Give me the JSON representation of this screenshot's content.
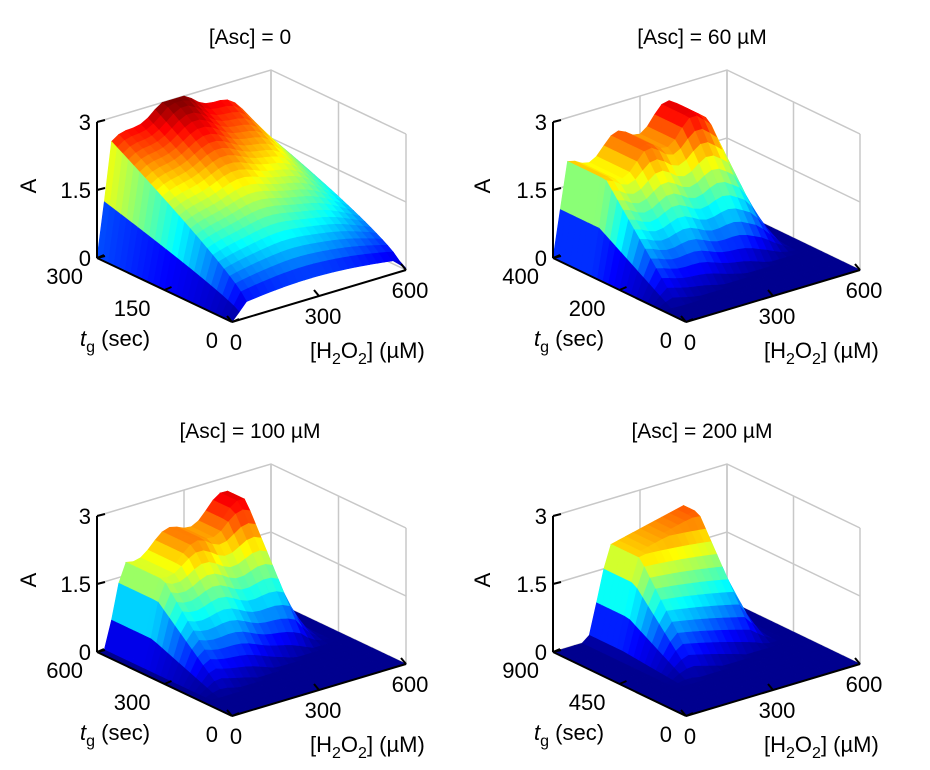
{
  "chart_data": [
    {
      "type": "surface",
      "title": "[Asc] = 0",
      "zlabel": "A",
      "xlabel": "[H2O2] (µM)",
      "ylabel": "tg (sec)",
      "xlim": [
        0,
        600
      ],
      "ylim": [
        0,
        300
      ],
      "zlim": [
        0,
        3
      ],
      "xticks": [
        "0",
        "300",
        "600"
      ],
      "yticks": [
        "0",
        "150",
        "300"
      ],
      "zticks": [
        "0",
        "1.5",
        "3"
      ],
      "x": [
        0,
        60,
        120,
        180,
        240,
        300,
        360,
        420,
        480,
        540,
        600
      ],
      "y": [
        0,
        30,
        60,
        90,
        120,
        150,
        180,
        210,
        240,
        270,
        300
      ],
      "peak_A": 3.0
    },
    {
      "type": "surface",
      "title": "[Asc] = 60 µM",
      "zlabel": "A",
      "xlabel": "[H2O2] (µM)",
      "ylabel": "tg (sec)",
      "xlim": [
        0,
        600
      ],
      "ylim": [
        0,
        400
      ],
      "zlim": [
        0,
        3
      ],
      "xticks": [
        "0",
        "300",
        "600"
      ],
      "yticks": [
        "0",
        "200",
        "400"
      ],
      "zticks": [
        "0",
        "1.5",
        "3"
      ],
      "x": [
        0,
        60,
        120,
        180,
        240,
        300,
        360,
        420,
        480,
        540,
        600
      ],
      "y": [
        0,
        40,
        80,
        120,
        160,
        200,
        240,
        280,
        320,
        360,
        400
      ],
      "peak_A": 2.9
    },
    {
      "type": "surface",
      "title": "[Asc] = 100 µM",
      "zlabel": "A",
      "xlabel": "[H2O2] (µM)",
      "ylabel": "tg (sec)",
      "xlim": [
        0,
        600
      ],
      "ylim": [
        0,
        600
      ],
      "zlim": [
        0,
        3
      ],
      "xticks": [
        "0",
        "300",
        "600"
      ],
      "yticks": [
        "0",
        "300",
        "600"
      ],
      "zticks": [
        "0",
        "1.5",
        "3"
      ],
      "x": [
        0,
        60,
        120,
        180,
        240,
        300,
        360,
        420,
        480,
        540,
        600
      ],
      "y": [
        0,
        60,
        120,
        180,
        240,
        300,
        360,
        420,
        480,
        540,
        600
      ],
      "peak_A": 2.9
    },
    {
      "type": "surface",
      "title": "[Asc] = 200 µM",
      "zlabel": "A",
      "xlabel": "[H2O2] (µM)",
      "ylabel": "tg (sec)",
      "xlim": [
        0,
        600
      ],
      "ylim": [
        0,
        900
      ],
      "zlim": [
        0,
        3
      ],
      "xticks": [
        "0",
        "300",
        "600"
      ],
      "yticks": [
        "0",
        "450",
        "900"
      ],
      "zticks": [
        "0",
        "1.5",
        "3"
      ],
      "x": [
        0,
        60,
        120,
        180,
        240,
        300,
        360,
        420,
        480,
        540,
        600
      ],
      "y": [
        0,
        90,
        180,
        270,
        360,
        450,
        540,
        630,
        720,
        810,
        900
      ],
      "peak_A": 2.6
    }
  ],
  "colormap": [
    "#00008f",
    "#0000ff",
    "#0080ff",
    "#00ffff",
    "#80ff80",
    "#ffff00",
    "#ff8000",
    "#ff0000",
    "#800000"
  ]
}
